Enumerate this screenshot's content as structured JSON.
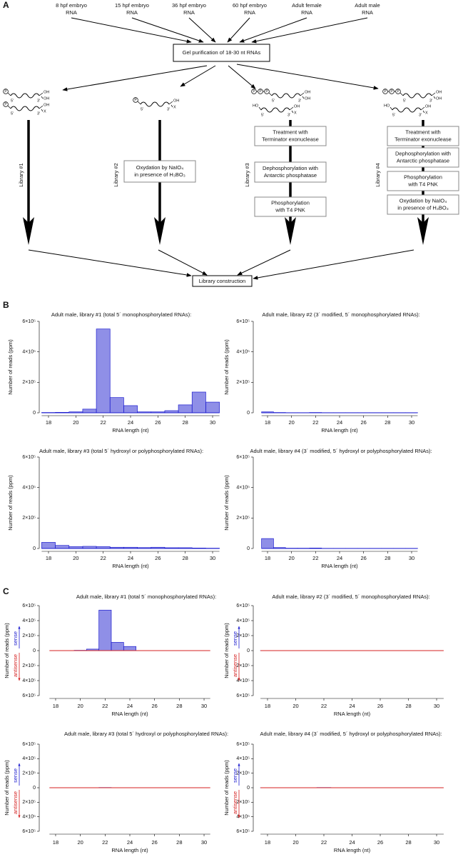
{
  "panel_labels": [
    "A",
    "B",
    "C"
  ],
  "diagram": {
    "sources": [
      [
        "8 hpf embryo",
        "RNA"
      ],
      [
        "15 hpf embryo",
        "RNA"
      ],
      [
        "36 hpf embryo",
        "RNA"
      ],
      [
        "60 hpf embryo",
        "RNA"
      ],
      [
        "Adult female",
        "RNA"
      ],
      [
        "Adult male",
        "RNA"
      ]
    ],
    "gel_purification": "Gel purification of 18-30 nt RNAs",
    "libraries": [
      {
        "label": "Library #1"
      },
      {
        "label": "Library #2",
        "steps": [
          [
            "Oxydation by NaIO₄",
            "in presence of H₃BO₃"
          ]
        ]
      },
      {
        "label": "Library #3",
        "steps": [
          [
            "Treatment with",
            "Terminator exonuclease"
          ],
          [
            "Dephosphorylation with",
            "Antarctic phosphatase"
          ],
          [
            "Phosphorylation",
            "with T4 PNK"
          ]
        ]
      },
      {
        "label": "Library #4",
        "steps": [
          [
            "Treatment with",
            "Terminator exonuclease"
          ],
          [
            "Dephosphorylation with",
            "Antarctic phosphatase"
          ],
          [
            "Phosphorylation",
            "with T4 PNK"
          ],
          [
            "Oxydation by NaIO₄",
            "in presence of H₃BO₃"
          ]
        ]
      }
    ],
    "library_construction": "Library construction",
    "symbols": {
      "phosphate": "P",
      "five_prime": "5′",
      "three_prime": "3′",
      "hydroxyl": "OH",
      "hydroxyl_5": "HO",
      "modification": "X"
    }
  },
  "chart_data": [
    {
      "type": "histogram",
      "title": "Adult male, library #1 (total 5´ monophosphorylated RNAs):",
      "x_label": "RNA length (nt)",
      "y_label": "Number of reads (ppm)",
      "bins": [
        17.5,
        18.5,
        19.5,
        20.5,
        21.5,
        22.5,
        23.5,
        24.5,
        25.5,
        26.5,
        27.5,
        28.5,
        29.5,
        30.5
      ],
      "series": [
        {
          "name": "reads",
          "color": "#1f1fcf",
          "values": [
            2000,
            3000,
            6000,
            24000,
            550000,
            100000,
            47000,
            6000,
            6000,
            14000,
            52000,
            136000,
            70000
          ]
        }
      ],
      "xlim": [
        17.5,
        30.5
      ],
      "xticks": [
        18,
        20,
        22,
        24,
        26,
        28,
        30
      ],
      "ylim": [
        0,
        600000
      ],
      "yticks": [
        0,
        {
          "value": 200000,
          "label": "2×10⁵"
        },
        {
          "value": 400000,
          "label": "4×10⁵"
        },
        {
          "value": 600000,
          "label": "6×10⁵"
        }
      ]
    },
    {
      "type": "histogram",
      "title": "Adult male, library #2 (3´ modified, 5´ monophosphorylated RNAs):",
      "x_label": "RNA length (nt)",
      "y_label": "Number of reads (ppm)",
      "bins": [
        17.5,
        18.5,
        19.5,
        20.5,
        21.5,
        22.5,
        23.5,
        24.5,
        25.5,
        26.5,
        27.5,
        28.5,
        29.5,
        30.5
      ],
      "series": [
        {
          "name": "reads",
          "color": "#1f1fcf",
          "values": [
            6000,
            2000,
            1000,
            1000,
            2000,
            1000,
            1000,
            1000,
            1000,
            1000,
            1000,
            1000,
            1000
          ]
        }
      ],
      "xlim": [
        17.5,
        30.5
      ],
      "xticks": [
        18,
        20,
        22,
        24,
        26,
        28,
        30
      ],
      "ylim": [
        0,
        600000
      ],
      "yticks": [
        0,
        {
          "value": 200000,
          "label": "2×10⁵"
        },
        {
          "value": 400000,
          "label": "4×10⁵"
        },
        {
          "value": 600000,
          "label": "6×10⁵"
        }
      ]
    },
    {
      "type": "histogram",
      "title": "Adult male, library #3 (total 5´ hydroxyl or polyphosphorylated RNAs):",
      "x_label": "RNA length (nt)",
      "y_label": "Number of reads (ppm)",
      "bins": [
        17.5,
        18.5,
        19.5,
        20.5,
        21.5,
        22.5,
        23.5,
        24.5,
        25.5,
        26.5,
        27.5,
        28.5,
        29.5,
        30.5
      ],
      "series": [
        {
          "name": "reads",
          "color": "#1f1fcf",
          "values": [
            40000,
            20000,
            12000,
            14000,
            12000,
            8000,
            8000,
            6000,
            8000,
            5000,
            5000,
            3000,
            2000
          ]
        }
      ],
      "xlim": [
        17.5,
        30.5
      ],
      "xticks": [
        18,
        20,
        22,
        24,
        26,
        28,
        30
      ],
      "ylim": [
        0,
        600000
      ],
      "yticks": [
        0,
        {
          "value": 200000,
          "label": "2×10⁵"
        },
        {
          "value": 400000,
          "label": "4×10⁵"
        },
        {
          "value": 600000,
          "label": "6×10⁵"
        }
      ]
    },
    {
      "type": "histogram",
      "title": "Adult male, library #4 (3´ modified, 5´ hydroxyl or polyphosphorylated RNAs):",
      "x_label": "RNA length (nt)",
      "y_label": "Number of reads (ppm)",
      "bins": [
        17.5,
        18.5,
        19.5,
        20.5,
        21.5,
        22.5,
        23.5,
        24.5,
        25.5,
        26.5,
        27.5,
        28.5,
        29.5,
        30.5
      ],
      "series": [
        {
          "name": "reads",
          "color": "#1f1fcf",
          "values": [
            65000,
            6000,
            2000,
            2000,
            3000,
            1000,
            1000,
            1000,
            1000,
            1000,
            1000,
            1000,
            1000
          ]
        }
      ],
      "xlim": [
        17.5,
        30.5
      ],
      "xticks": [
        18,
        20,
        22,
        24,
        26,
        28,
        30
      ],
      "ylim": [
        0,
        600000
      ],
      "yticks": [
        0,
        {
          "value": 200000,
          "label": "2×10⁵"
        },
        {
          "value": 400000,
          "label": "4×10⁵"
        },
        {
          "value": 600000,
          "label": "6×10⁵"
        }
      ]
    },
    {
      "type": "histogram",
      "title": "Adult male, library #1 (total 5´ monophosphorylated RNAs):",
      "x_label": "RNA length (nt)",
      "y_label": "Number of reads (ppm)",
      "bins": [
        17.5,
        18.5,
        19.5,
        20.5,
        21.5,
        22.5,
        23.5,
        24.5,
        25.5,
        26.5,
        27.5,
        28.5,
        29.5,
        30.5
      ],
      "series": [
        {
          "name": "sense",
          "color": "#1f1fcf",
          "values": [
            0,
            1000,
            4000,
            20000,
            540000,
            110000,
            55000,
            0,
            0,
            0,
            0,
            0,
            0
          ]
        },
        {
          "name": "antisense",
          "color": "#d42020",
          "values": [
            0,
            0,
            0,
            0,
            0,
            0,
            0,
            0,
            0,
            0,
            0,
            0,
            0
          ]
        }
      ],
      "xlim": [
        17.5,
        30.5
      ],
      "xticks": [
        18,
        20,
        22,
        24,
        26,
        28,
        30
      ],
      "ylim": [
        -600000,
        600000
      ],
      "yticks": [
        {
          "value": 600000,
          "label": "6×10⁵"
        },
        {
          "value": 400000,
          "label": "4×10⁵"
        },
        {
          "value": 200000,
          "label": "2×10⁵"
        },
        0,
        {
          "value": -200000,
          "label": "2×10⁵"
        },
        {
          "value": -400000,
          "label": "4×10⁵"
        },
        {
          "value": -600000,
          "label": "6×10⁵"
        }
      ]
    },
    {
      "type": "histogram",
      "title": "Adult male, library #2 (3´ modified, 5´ monophosphorylated RNAs):",
      "x_label": "RNA length (nt)",
      "y_label": "Number of reads (ppm)",
      "bins": [
        17.5,
        18.5,
        19.5,
        20.5,
        21.5,
        22.5,
        23.5,
        24.5,
        25.5,
        26.5,
        27.5,
        28.5,
        29.5,
        30.5
      ],
      "series": [
        {
          "name": "sense",
          "color": "#1f1fcf",
          "values": [
            1000,
            0,
            0,
            0,
            1000,
            0,
            0,
            0,
            0,
            0,
            0,
            0,
            0
          ]
        },
        {
          "name": "antisense",
          "color": "#d42020",
          "values": [
            0,
            0,
            0,
            0,
            0,
            0,
            0,
            0,
            0,
            0,
            0,
            0,
            0
          ]
        }
      ],
      "xlim": [
        17.5,
        30.5
      ],
      "xticks": [
        18,
        20,
        22,
        24,
        26,
        28,
        30
      ],
      "ylim": [
        -600000,
        600000
      ],
      "yticks": [
        {
          "value": 600000,
          "label": "6×10⁵"
        },
        {
          "value": 400000,
          "label": "4×10⁵"
        },
        {
          "value": 200000,
          "label": "2×10⁵"
        },
        0,
        {
          "value": -200000,
          "label": "2×10⁵"
        },
        {
          "value": -400000,
          "label": "4×10⁵"
        },
        {
          "value": -600000,
          "label": "6×10⁵"
        }
      ]
    },
    {
      "type": "histogram",
      "title": "Adult male, library #3 (total 5´ hydroxyl or polyphosphorylated RNAs):",
      "x_label": "RNA length (nt)",
      "y_label": "Number of reads (ppm)",
      "bins": [
        17.5,
        18.5,
        19.5,
        20.5,
        21.5,
        22.5,
        23.5,
        24.5,
        25.5,
        26.5,
        27.5,
        28.5,
        29.5,
        30.5
      ],
      "series": [
        {
          "name": "sense",
          "color": "#1f1fcf",
          "values": [
            0,
            0,
            0,
            0,
            3000,
            0,
            0,
            0,
            0,
            0,
            0,
            0,
            0
          ]
        },
        {
          "name": "antisense",
          "color": "#d42020",
          "values": [
            0,
            0,
            0,
            0,
            0,
            0,
            0,
            0,
            0,
            0,
            0,
            0,
            0
          ]
        }
      ],
      "xlim": [
        17.5,
        30.5
      ],
      "xticks": [
        18,
        20,
        22,
        24,
        26,
        28,
        30
      ],
      "ylim": [
        -600000,
        600000
      ],
      "yticks": [
        {
          "value": 600000,
          "label": "6×10⁵"
        },
        {
          "value": 400000,
          "label": "4×10⁵"
        },
        {
          "value": 200000,
          "label": "2×10⁵"
        },
        0,
        {
          "value": -200000,
          "label": "2×10⁵"
        },
        {
          "value": -400000,
          "label": "4×10⁵"
        },
        {
          "value": -600000,
          "label": "6×10⁵"
        }
      ]
    },
    {
      "type": "histogram",
      "title": "Adult male, library #4 (3´ modified, 5´ hydroxyl or polyphosphorylated RNAs):",
      "x_label": "RNA length (nt)",
      "y_label": "Number of reads (ppm)",
      "bins": [
        17.5,
        18.5,
        19.5,
        20.5,
        21.5,
        22.5,
        23.5,
        24.5,
        25.5,
        26.5,
        27.5,
        28.5,
        29.5,
        30.5
      ],
      "series": [
        {
          "name": "sense",
          "color": "#1f1fcf",
          "values": [
            1000,
            0,
            0,
            0,
            3000,
            0,
            0,
            0,
            0,
            0,
            0,
            0,
            0
          ]
        },
        {
          "name": "antisense",
          "color": "#d42020",
          "values": [
            0,
            0,
            0,
            0,
            0,
            0,
            0,
            0,
            0,
            0,
            0,
            0,
            0
          ]
        }
      ],
      "xlim": [
        17.5,
        30.5
      ],
      "xticks": [
        18,
        20,
        22,
        24,
        26,
        28,
        30
      ],
      "ylim": [
        -600000,
        600000
      ],
      "yticks": [
        {
          "value": 600000,
          "label": "6×10⁵"
        },
        {
          "value": 400000,
          "label": "4×10⁵"
        },
        {
          "value": 200000,
          "label": "2×10⁵"
        },
        0,
        {
          "value": -200000,
          "label": "2×10⁵"
        },
        {
          "value": -400000,
          "label": "4×10⁵"
        },
        {
          "value": -600000,
          "label": "6×10⁵"
        }
      ]
    }
  ]
}
